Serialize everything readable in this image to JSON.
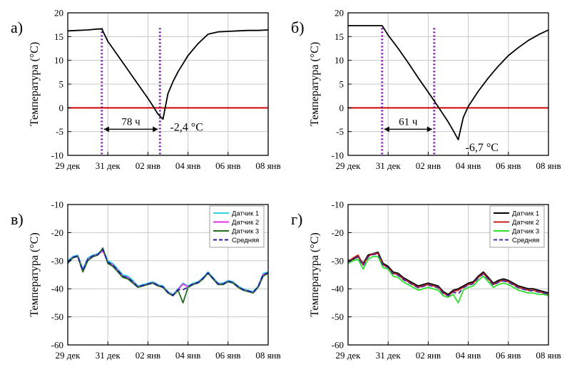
{
  "chart_data": [
    {
      "panel_label": "а)",
      "type": "line",
      "ylabel": "Температура (°C)",
      "ylim": [
        -10,
        20
      ],
      "yticks": [
        -10,
        -5,
        0,
        5,
        10,
        15,
        20
      ],
      "xlim": [
        0,
        10
      ],
      "xticks": [
        0,
        2,
        4,
        6,
        8,
        10
      ],
      "xticklabels": [
        "29 дек",
        "31 дек",
        "02 янв",
        "04 янв",
        "06 янв",
        "08 янв"
      ],
      "grid": true,
      "zero_line": true,
      "series": [
        {
          "color": "#000000",
          "x": [
            0,
            0.5,
            1,
            1.5,
            1.7,
            2,
            2.5,
            3,
            3.5,
            4,
            4.25,
            4.5,
            4.75,
            5,
            5.25,
            5.5,
            6,
            6.5,
            7,
            7.5,
            8,
            8.5,
            9,
            9.5,
            10
          ],
          "y": [
            16.2,
            16.3,
            16.4,
            16.6,
            16.6,
            14,
            11,
            8,
            5,
            2,
            0.4,
            -1.3,
            -2.4,
            3,
            5.5,
            7.6,
            11,
            13.5,
            15.5,
            16,
            16.1,
            16.2,
            16.3,
            16.3,
            16.4
          ]
        }
      ],
      "markers_x": [
        1.7,
        4.6
      ],
      "duration_label": "78 ч",
      "min_label": "-2,4 °C"
    },
    {
      "panel_label": "б)",
      "type": "line",
      "ylabel": "Температура (°C)",
      "ylim": [
        -10,
        20
      ],
      "yticks": [
        -10,
        -5,
        0,
        5,
        10,
        15,
        20
      ],
      "xlim": [
        0,
        10
      ],
      "xticks": [
        0,
        2,
        4,
        6,
        8,
        10
      ],
      "xticklabels": [
        "29 дек",
        "31 дек",
        "02 янв",
        "04 янв",
        "06 янв",
        "08 янв"
      ],
      "grid": true,
      "zero_line": true,
      "series": [
        {
          "color": "#000000",
          "x": [
            0,
            0.5,
            1,
            1.5,
            1.7,
            2,
            2.5,
            3,
            3.5,
            4,
            4.5,
            5,
            5.25,
            5.5,
            5.75,
            6,
            6.5,
            7,
            7.5,
            8,
            8.5,
            9,
            9.5,
            10
          ],
          "y": [
            17.3,
            17.3,
            17.3,
            17.3,
            17.3,
            15.3,
            12.5,
            9.5,
            6.3,
            3.3,
            0.2,
            -3,
            -4.8,
            -6.7,
            -2,
            0.3,
            3.5,
            6.3,
            8.8,
            11,
            12.7,
            14.2,
            15.4,
            16.4
          ]
        }
      ],
      "markers_x": [
        1.7,
        4.3
      ],
      "duration_label": "61 ч",
      "min_label": "-6,7 °C"
    },
    {
      "panel_label": "в)",
      "type": "line",
      "ylabel": "Температура (°C)",
      "ylim": [
        -60,
        -10
      ],
      "yticks": [
        -60,
        -50,
        -40,
        -30,
        -20,
        -10
      ],
      "xlim": [
        0,
        10
      ],
      "xticks": [
        0,
        2,
        4,
        6,
        8,
        10
      ],
      "xticklabels": [
        "29 дек",
        "31 дек",
        "02 янв",
        "04 янв",
        "06 янв",
        "08 янв"
      ],
      "grid": true,
      "legend_position": "top-right",
      "x": [
        0,
        0.25,
        0.5,
        0.75,
        1,
        1.25,
        1.5,
        1.75,
        2,
        2.25,
        2.5,
        2.75,
        3,
        3.25,
        3.5,
        3.75,
        4,
        4.25,
        4.5,
        4.75,
        5,
        5.25,
        5.5,
        5.75,
        6,
        6.25,
        6.5,
        6.75,
        7,
        7.25,
        7.5,
        7.75,
        8,
        8.25,
        8.5,
        8.75,
        9,
        9.25,
        9.5,
        9.75,
        10
      ],
      "series": [
        {
          "name": "Датчик 1",
          "color": "#33d6e0",
          "values": [
            -30,
            -28.5,
            -28,
            -33,
            -29,
            -28,
            -27.5,
            -26,
            -30,
            -31,
            -33,
            -35,
            -35.5,
            -37,
            -39,
            -38.5,
            -38,
            -37.5,
            -38.5,
            -39,
            -41,
            -42,
            -40,
            -38,
            -39,
            -38,
            -37.5,
            -36,
            -34,
            -36,
            -38,
            -38,
            -37,
            -37.5,
            -39,
            -40,
            -40.5,
            -41,
            -39,
            -34.5,
            -34
          ]
        },
        {
          "name": "Датчик 2",
          "color": "#e033e0",
          "values": [
            -30.5,
            -28.8,
            -28.3,
            -33.5,
            -29.5,
            -28.3,
            -27.8,
            -26.5,
            -30.5,
            -31.5,
            -33.5,
            -35.5,
            -36,
            -37.5,
            -39.3,
            -38.8,
            -38.3,
            -37.8,
            -38.8,
            -39.3,
            -41.3,
            -42.3,
            -40.3,
            -38.3,
            -39.3,
            -38.3,
            -37.8,
            -36.3,
            -34.3,
            -36.3,
            -38.3,
            -38.3,
            -37.3,
            -37.8,
            -39.3,
            -40.3,
            -40.8,
            -41.3,
            -39.3,
            -35,
            -34.3
          ]
        },
        {
          "name": "Датчик 3",
          "color": "#1f6f1f",
          "values": [
            -31,
            -29,
            -28.5,
            -34,
            -30,
            -28.6,
            -28,
            -25.5,
            -31,
            -32,
            -34,
            -36,
            -36.5,
            -38,
            -39.5,
            -39,
            -38.5,
            -38,
            -39,
            -39.5,
            -41.5,
            -42.5,
            -40.5,
            -45,
            -39.5,
            -38.5,
            -38,
            -36.5,
            -34.5,
            -36.5,
            -38.5,
            -38.5,
            -37.5,
            -38,
            -39.5,
            -40.5,
            -41,
            -41.5,
            -39.5,
            -35.5,
            -34.5
          ]
        },
        {
          "name": "Средняя",
          "color": "#1c1ca0",
          "dashed": true,
          "values": [
            -30.5,
            -28.8,
            -28.3,
            -33.5,
            -29.5,
            -28.3,
            -27.8,
            -26,
            -30.5,
            -31.5,
            -33.5,
            -35.5,
            -36,
            -37.5,
            -39.3,
            -38.8,
            -38.3,
            -37.8,
            -38.8,
            -39.3,
            -41.3,
            -42.3,
            -40.3,
            -40.4,
            -39.3,
            -38.3,
            -37.8,
            -36.3,
            -34.3,
            -36.3,
            -38.3,
            -38.3,
            -37.3,
            -37.8,
            -39.3,
            -40.3,
            -40.8,
            -41.3,
            -39.3,
            -35,
            -34.3
          ]
        }
      ]
    },
    {
      "panel_label": "г)",
      "type": "line",
      "ylabel": "Температура (°C)",
      "ylim": [
        -60,
        -10
      ],
      "yticks": [
        -60,
        -50,
        -40,
        -30,
        -20,
        -10
      ],
      "xlim": [
        0,
        10
      ],
      "xticks": [
        0,
        2,
        4,
        6,
        8,
        10
      ],
      "xticklabels": [
        "29 дек",
        "31 дек",
        "02 янв",
        "04 янв",
        "06 янв",
        "08 янв"
      ],
      "grid": true,
      "legend_position": "top-right",
      "x": [
        0,
        0.25,
        0.5,
        0.75,
        1,
        1.25,
        1.5,
        1.75,
        2,
        2.25,
        2.5,
        2.75,
        3,
        3.25,
        3.5,
        3.75,
        4,
        4.25,
        4.5,
        4.75,
        5,
        5.25,
        5.5,
        5.75,
        6,
        6.25,
        6.5,
        6.75,
        7,
        7.25,
        7.5,
        7.75,
        8,
        8.25,
        8.5,
        8.75,
        9,
        9.25,
        9.5,
        9.75,
        10
      ],
      "series": [
        {
          "name": "Датчик 1",
          "color": "#000000",
          "values": [
            -30,
            -29.5,
            -28.5,
            -31,
            -28,
            -27.5,
            -27,
            -31,
            -32,
            -34,
            -34.5,
            -36,
            -37,
            -38,
            -39,
            -38.5,
            -38,
            -38.5,
            -39,
            -41,
            -42,
            -40.5,
            -40,
            -39,
            -38,
            -37.5,
            -35.5,
            -34,
            -36,
            -38,
            -37,
            -36.5,
            -37,
            -38,
            -39,
            -39.5,
            -40,
            -40,
            -40.5,
            -41,
            -41.5
          ]
        },
        {
          "name": "Датчик 2",
          "color": "#cc1f1f",
          "values": [
            -30.5,
            -29,
            -28,
            -31.5,
            -28.5,
            -27.5,
            -27.5,
            -31.5,
            -32.5,
            -34.5,
            -35,
            -36.5,
            -37.5,
            -38.5,
            -39.5,
            -39,
            -38.5,
            -39,
            -39.5,
            -41.5,
            -42.5,
            -41,
            -40.5,
            -39.5,
            -38.5,
            -38,
            -36,
            -34.5,
            -36.5,
            -38.5,
            -37.5,
            -37,
            -37.5,
            -38.5,
            -39.5,
            -40,
            -40.5,
            -40.5,
            -41,
            -41.5,
            -42
          ]
        },
        {
          "name": "Датчик 3",
          "color": "#2ee02e",
          "values": [
            -31,
            -30,
            -29.5,
            -33,
            -29.5,
            -28.5,
            -28.5,
            -32.5,
            -33,
            -35.5,
            -36,
            -37.5,
            -38.5,
            -39.5,
            -40.5,
            -40,
            -39.5,
            -40,
            -40.5,
            -42.5,
            -43,
            -42,
            -45,
            -40.5,
            -39.5,
            -39,
            -37,
            -35.5,
            -37.5,
            -39.5,
            -38.5,
            -38,
            -38.5,
            -39.5,
            -40.5,
            -41,
            -41.5,
            -41.5,
            -42,
            -42,
            -42.5
          ]
        },
        {
          "name": "Средняя",
          "color": "#4b2c9e",
          "dashed": true,
          "values": [
            -30.5,
            -29.5,
            -28.7,
            -31.8,
            -28.7,
            -27.8,
            -27.7,
            -31.7,
            -32.5,
            -34.7,
            -35.2,
            -36.7,
            -37.7,
            -38.7,
            -39.7,
            -39.2,
            -38.7,
            -39.2,
            -39.7,
            -41.7,
            -42.5,
            -41.2,
            -41.8,
            -39.7,
            -38.7,
            -38.2,
            -36.2,
            -34.7,
            -36.7,
            -38.7,
            -37.7,
            -37.2,
            -37.7,
            -38.7,
            -39.7,
            -40.2,
            -40.7,
            -40.7,
            -41.2,
            -41.5,
            -42
          ]
        }
      ]
    }
  ]
}
